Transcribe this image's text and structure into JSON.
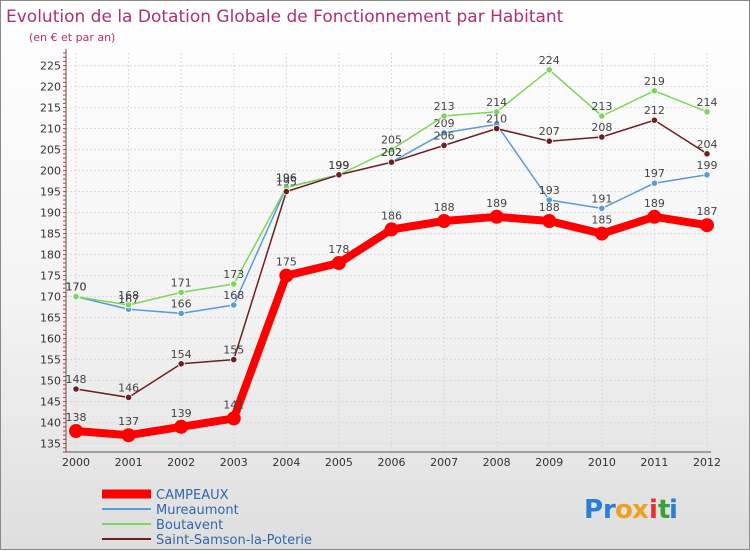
{
  "chart_data": {
    "type": "line",
    "title": "Evolution de la Dotation Globale de Fonctionnement par Habitant",
    "subtitle": "(en € et par an)",
    "xlabel": "",
    "ylabel": "",
    "x": [
      "2000",
      "2001",
      "2002",
      "2003",
      "2004",
      "2005",
      "2006",
      "2007",
      "2008",
      "2009",
      "2010",
      "2011",
      "2012"
    ],
    "yticks": [
      135,
      140,
      145,
      150,
      155,
      160,
      165,
      170,
      175,
      180,
      185,
      190,
      195,
      200,
      205,
      210,
      215,
      220,
      225
    ],
    "ylim": [
      133,
      228
    ],
    "grid": true,
    "legend_position": "bottom-left",
    "series": [
      {
        "name": "CAMPEAUX",
        "color": "#ff0000",
        "emphasis": true,
        "values": [
          138,
          137,
          139,
          141,
          175,
          178,
          186,
          188,
          189,
          188,
          185,
          189,
          187
        ],
        "labels": [
          "138",
          "137",
          "139",
          "141",
          "175",
          "178",
          "186",
          "188",
          "189",
          "188",
          "185",
          "189",
          "187"
        ]
      },
      {
        "name": "Mureaumont",
        "color": "#5b9bd5",
        "emphasis": false,
        "values": [
          170,
          167,
          166,
          168,
          196,
          199,
          202,
          209,
          211,
          193,
          191,
          197,
          199
        ],
        "labels": [
          "170",
          "167",
          "166",
          "168",
          "196",
          "199",
          "202",
          "209",
          "",
          "193",
          "191",
          "197",
          "199"
        ]
      },
      {
        "name": "Boutavent",
        "color": "#7dd65b",
        "emphasis": false,
        "values": [
          170,
          168,
          171,
          173,
          196,
          199,
          205,
          213,
          214,
          224,
          213,
          219,
          214
        ],
        "labels": [
          "170",
          "168",
          "171",
          "173",
          "196",
          "199",
          "205",
          "213",
          "214",
          "224",
          "213",
          "219",
          "214"
        ]
      },
      {
        "name": "Saint-Samson-la-Poterie",
        "color": "#6b2020",
        "emphasis": false,
        "values": [
          148,
          146,
          154,
          155,
          195,
          199,
          202,
          206,
          210,
          207,
          208,
          212,
          204
        ],
        "labels": [
          "148",
          "146",
          "154",
          "155",
          "195",
          "199",
          "202",
          "206",
          "210",
          "207",
          "208",
          "212",
          "204"
        ]
      }
    ]
  },
  "logo": {
    "text": "Proxiti",
    "letters": [
      "P",
      "r",
      "o",
      "x",
      "i",
      "t",
      "i"
    ],
    "colors": [
      "#2a7fd4",
      "#2a7fd4",
      "#f0a020",
      "#f0a020",
      "#e83030",
      "#3aa03a",
      "#2a7fd4"
    ]
  }
}
